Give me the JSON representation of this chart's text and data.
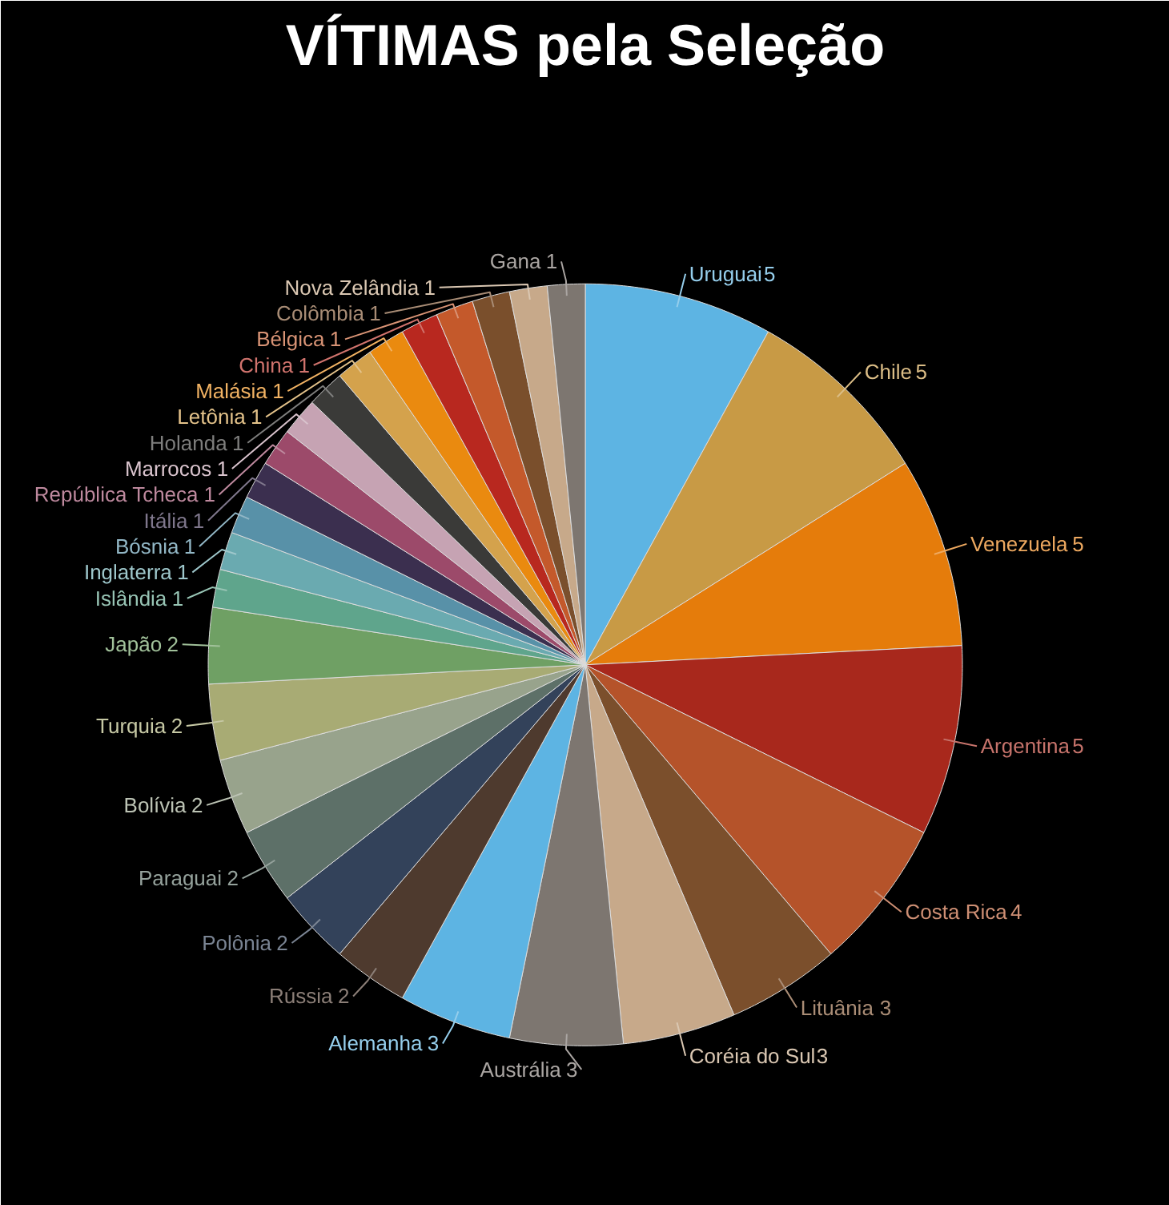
{
  "chart_data": {
    "type": "pie",
    "title": "VÍTIMAS pela Seleção",
    "categories": [
      "Uruguai",
      "Chile",
      "Venezuela",
      "Argentina",
      "Costa Rica",
      "Lituânia",
      "Coréia do Sul",
      "Austrália",
      "Alemanha",
      "Rússia",
      "Polônia",
      "Paraguai",
      "Bolívia",
      "Turquia",
      "Japão",
      "Islândia",
      "Inglaterra",
      "Bósnia",
      "Itália",
      "República Tcheca",
      "Marrocos",
      "Holanda",
      "Letônia",
      "Malásia",
      "China",
      "Bélgica",
      "Colômbia",
      "Nova Zelândia",
      "Gana"
    ],
    "values": [
      5,
      5,
      5,
      5,
      4,
      3,
      3,
      3,
      3,
      2,
      2,
      2,
      2,
      2,
      2,
      1,
      1,
      1,
      1,
      1,
      1,
      1,
      1,
      1,
      1,
      1,
      1,
      1,
      1
    ],
    "colors": [
      "#5db4e3",
      "#c89a45",
      "#e57c0b",
      "#a8281c",
      "#b5532a",
      "#7b4f2c",
      "#c7a98a",
      "#7d7670",
      "#5db4e3",
      "#4e3a2e",
      "#33425a",
      "#5d7068",
      "#98a38c",
      "#a8ab74",
      "#6fa064",
      "#5fa58c",
      "#6aaab0",
      "#5891a8",
      "#3b2f4f",
      "#9c4a6a",
      "#c6a3b3",
      "#3a3a38",
      "#d4a24c",
      "#ea8a0f",
      "#b8281f",
      "#c4592b",
      "#7a4f2c",
      "#c7a98a",
      "#7d7670"
    ],
    "data_labels": true
  }
}
